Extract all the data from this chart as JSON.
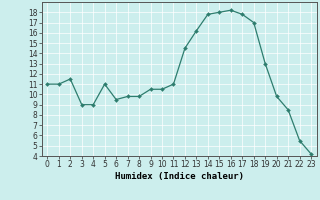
{
  "x": [
    0,
    1,
    2,
    3,
    4,
    5,
    6,
    7,
    8,
    9,
    10,
    11,
    12,
    13,
    14,
    15,
    16,
    17,
    18,
    19,
    20,
    21,
    22,
    23
  ],
  "y": [
    11,
    11,
    11.5,
    9,
    9,
    11,
    9.5,
    9.8,
    9.8,
    10.5,
    10.5,
    11,
    14.5,
    16.2,
    17.8,
    18,
    18.2,
    17.8,
    17,
    13,
    9.8,
    8.5,
    5.5,
    4.2
  ],
  "xlabel": "Humidex (Indice chaleur)",
  "xlim": [
    -0.5,
    23.5
  ],
  "ylim": [
    4,
    19
  ],
  "yticks": [
    4,
    5,
    6,
    7,
    8,
    9,
    10,
    11,
    12,
    13,
    14,
    15,
    16,
    17,
    18
  ],
  "xticks": [
    0,
    1,
    2,
    3,
    4,
    5,
    6,
    7,
    8,
    9,
    10,
    11,
    12,
    13,
    14,
    15,
    16,
    17,
    18,
    19,
    20,
    21,
    22,
    23
  ],
  "line_color": "#2e7d6e",
  "marker_color": "#2e7d6e",
  "bg_color": "#cceeed",
  "grid_color": "#ffffff",
  "tick_fontsize": 5.5,
  "label_fontsize": 6.5
}
